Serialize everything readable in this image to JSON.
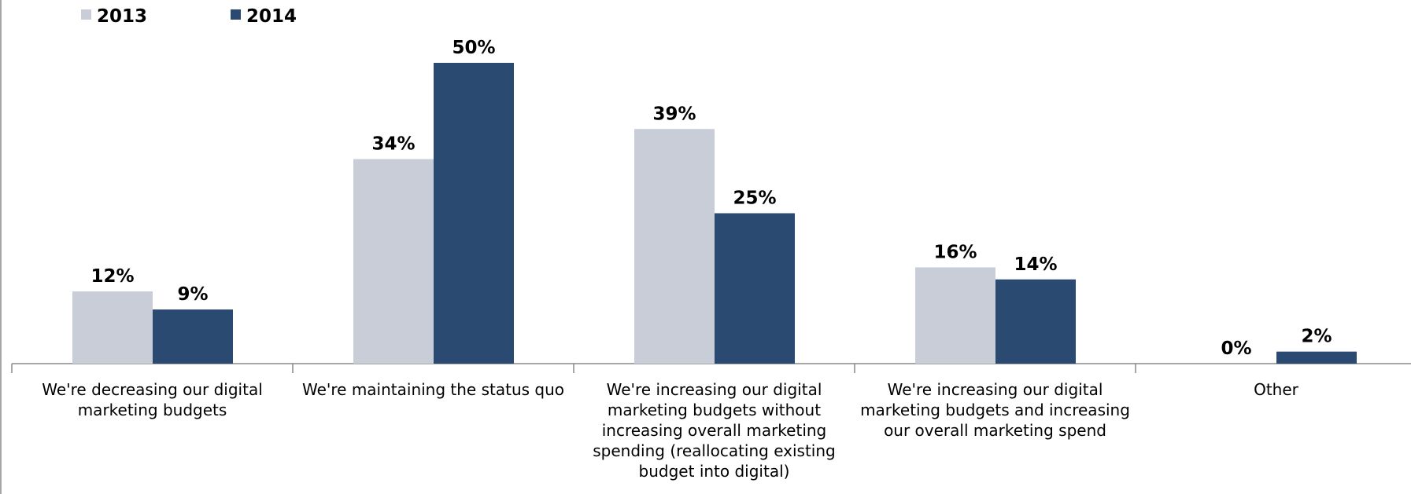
{
  "chart_data": {
    "type": "bar",
    "categories": [
      "We're decreasing our digital marketing budgets",
      "We're maintaining the status quo",
      "We're increasing our digital marketing budgets without increasing overall marketing spending (reallocating existing budget into digital)",
      "We're increasing our digital marketing budgets and increasing our overall marketing spend",
      "Other"
    ],
    "series": [
      {
        "name": "2013",
        "color": "#c8cdd8",
        "values": [
          12,
          34,
          39,
          16,
          0
        ],
        "value_labels": [
          "12%",
          "34%",
          "39%",
          "16%",
          "0%"
        ]
      },
      {
        "name": "2014",
        "color": "#2b4a72",
        "values": [
          9,
          50,
          25,
          14,
          2
        ],
        "value_labels": [
          "9%",
          "50%",
          "25%",
          "14%",
          "2%"
        ]
      }
    ],
    "legend": "top-left"
  }
}
